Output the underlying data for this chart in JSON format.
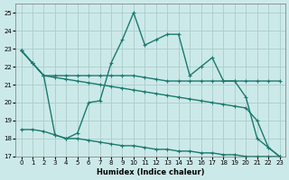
{
  "xlabel": "Humidex (Indice chaleur)",
  "xlim": [
    -0.5,
    23.5
  ],
  "ylim": [
    17,
    25.5
  ],
  "yticks": [
    17,
    18,
    19,
    20,
    21,
    22,
    23,
    24,
    25
  ],
  "xticks": [
    0,
    1,
    2,
    3,
    4,
    5,
    6,
    7,
    8,
    9,
    10,
    11,
    12,
    13,
    14,
    15,
    16,
    17,
    18,
    19,
    20,
    21,
    22,
    23
  ],
  "bg_color": "#cce9e9",
  "line_color": "#1a7a6e",
  "grid_color": "#aacccc",
  "curve1_x": [
    0,
    1,
    2,
    3,
    4,
    5,
    6,
    7,
    8,
    9,
    10,
    11,
    12,
    13,
    14,
    15,
    16,
    17,
    18,
    19,
    20,
    21,
    22,
    23
  ],
  "curve1_y": [
    22.9,
    22.2,
    21.5,
    18.2,
    18.0,
    18.3,
    20.0,
    20.1,
    22.2,
    23.5,
    25.0,
    23.2,
    23.5,
    23.8,
    23.8,
    21.5,
    22.0,
    22.5,
    21.2,
    21.2,
    20.3,
    18.0,
    17.5,
    17.0
  ],
  "curve2_x": [
    0,
    1,
    2,
    3,
    4,
    5,
    6,
    7,
    8,
    9,
    10,
    11,
    12,
    13,
    14,
    15,
    16,
    17,
    18,
    19,
    20,
    21,
    22,
    23
  ],
  "curve2_y": [
    22.9,
    22.2,
    21.5,
    21.5,
    21.5,
    21.5,
    21.5,
    21.5,
    21.5,
    21.5,
    21.5,
    21.4,
    21.3,
    21.2,
    21.2,
    21.2,
    21.2,
    21.2,
    21.2,
    21.2,
    21.2,
    21.2,
    21.2,
    21.2
  ],
  "curve3_x": [
    0,
    1,
    2,
    3,
    4,
    5,
    6,
    7,
    8,
    9,
    10,
    11,
    12,
    13,
    14,
    15,
    16,
    17,
    18,
    19,
    20,
    21,
    22,
    23
  ],
  "curve3_y": [
    22.9,
    22.2,
    21.5,
    21.4,
    21.3,
    21.2,
    21.1,
    21.0,
    20.9,
    20.8,
    20.7,
    20.6,
    20.5,
    20.4,
    20.3,
    20.2,
    20.1,
    20.0,
    19.9,
    19.8,
    19.7,
    19.0,
    17.5,
    17.0
  ],
  "curve4_x": [
    0,
    1,
    2,
    3,
    4,
    5,
    6,
    7,
    8,
    9,
    10,
    11,
    12,
    13,
    14,
    15,
    16,
    17,
    18,
    19,
    20,
    21,
    22,
    23
  ],
  "curve4_y": [
    18.5,
    18.5,
    18.4,
    18.2,
    18.0,
    18.0,
    17.9,
    17.8,
    17.7,
    17.6,
    17.6,
    17.5,
    17.4,
    17.4,
    17.3,
    17.3,
    17.2,
    17.2,
    17.1,
    17.1,
    17.0,
    17.0,
    17.0,
    17.0
  ]
}
